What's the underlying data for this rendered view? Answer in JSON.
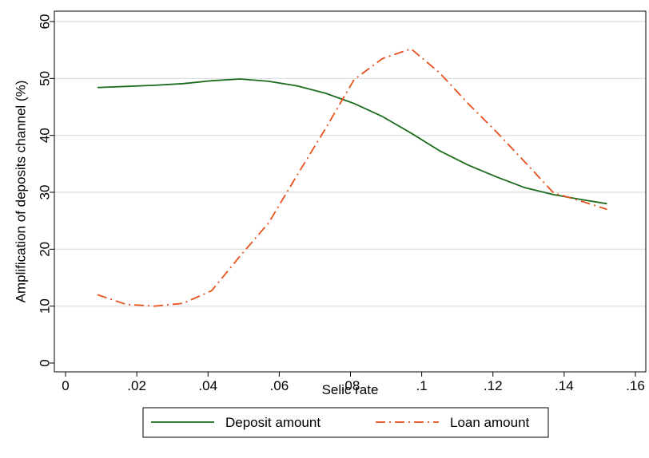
{
  "chart_data": {
    "type": "line",
    "xlabel": "Selic rate",
    "ylabel": "Amplification of deposits channel (%)",
    "xlim": [
      0,
      0.16
    ],
    "ylim": [
      0,
      60
    ],
    "x_ticks": [
      0,
      0.02,
      0.04,
      0.06,
      0.08,
      0.1,
      0.12,
      0.14,
      0.16
    ],
    "x_tick_labels": [
      "0",
      ".02",
      ".04",
      ".06",
      ".08",
      ".1",
      ".12",
      ".14",
      ".16"
    ],
    "y_ticks": [
      0,
      10,
      20,
      30,
      40,
      50,
      60
    ],
    "y_tick_labels": [
      "0",
      "10",
      "20",
      "30",
      "40",
      "50",
      "60"
    ],
    "grid": true,
    "legend_position": "bottom",
    "series": [
      {
        "name": "Deposit amount",
        "color": "#1a6b1a",
        "style": "solid",
        "x": [
          0.009,
          0.017,
          0.025,
          0.033,
          0.041,
          0.049,
          0.057,
          0.065,
          0.073,
          0.081,
          0.089,
          0.097,
          0.105,
          0.113,
          0.121,
          0.129,
          0.137,
          0.145,
          0.152
        ],
        "y": [
          48.4,
          48.6,
          48.8,
          49.1,
          49.6,
          49.9,
          49.5,
          48.7,
          47.4,
          45.6,
          43.3,
          40.4,
          37.3,
          34.8,
          32.7,
          30.8,
          29.6,
          28.7,
          28.0
        ]
      },
      {
        "name": "Loan amount",
        "color": "#e8501c",
        "style": "dashdot",
        "x": [
          0.009,
          0.017,
          0.025,
          0.033,
          0.041,
          0.049,
          0.057,
          0.065,
          0.073,
          0.081,
          0.089,
          0.097,
          0.105,
          0.113,
          0.121,
          0.129,
          0.137,
          0.145,
          0.152
        ],
        "y": [
          12.0,
          10.3,
          10.0,
          10.5,
          12.7,
          18.8,
          24.6,
          33.0,
          41.2,
          49.8,
          53.5,
          55.2,
          51.0,
          45.6,
          40.6,
          35.3,
          29.9,
          28.4,
          27.0
        ]
      }
    ]
  }
}
